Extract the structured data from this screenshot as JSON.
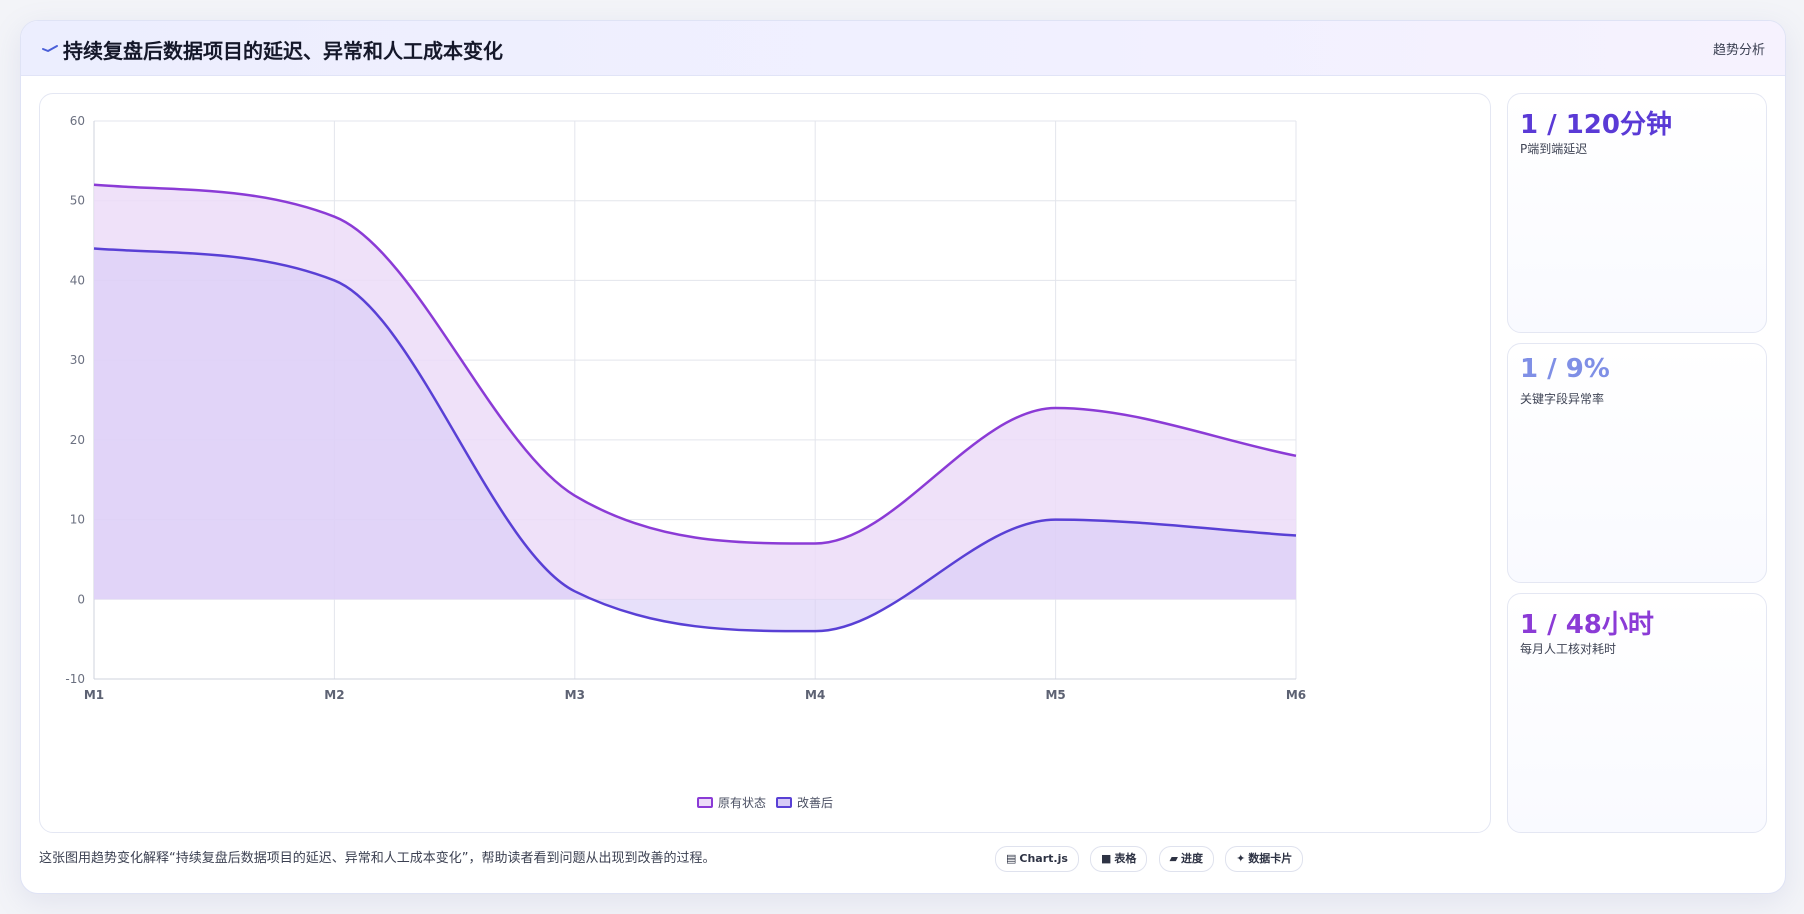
{
  "header": {
    "title": "持续复盘后数据项目的延迟、异常和人工成本变化",
    "action_label": "趋势分析"
  },
  "chart_data": {
    "type": "line",
    "categories": [
      "M1",
      "M2",
      "M3",
      "M4",
      "M5",
      "M6"
    ],
    "series": [
      {
        "name": "原有状态",
        "values": [
          52,
          48,
          13,
          7,
          24,
          18
        ],
        "color": "#8b3bd6",
        "fill": "#ecdcf8"
      },
      {
        "name": "改善后",
        "values": [
          44,
          40,
          1,
          -4,
          10,
          8
        ],
        "color": "#5940d5",
        "fill": "#d7cbf6"
      }
    ],
    "ylim": [
      -10,
      60
    ],
    "yticks": [
      -10,
      0,
      10,
      20,
      30,
      40,
      50,
      60
    ],
    "fill": true,
    "smooth": true,
    "grid": true,
    "legend": "bottom",
    "title": "",
    "xlabel": "",
    "ylabel": ""
  },
  "stats": [
    {
      "value": "1 / 120分钟",
      "label": "P端到端延迟",
      "color": "#5a3ad6"
    },
    {
      "value": "1 / 9%",
      "label": "关键字段异常率",
      "color": "#7f8fe6"
    },
    {
      "value": "1 / 48小时",
      "label": "每月人工核对耗时",
      "color": "#8b3bd6"
    }
  ],
  "footer": {
    "description": "这张图用趋势变化解释“持续复盘后数据项目的延迟、异常和人工成本变化”，帮助读者看到问题从出现到改善的过程。",
    "chips": [
      {
        "icon": "▤",
        "label": "Chart.js"
      },
      {
        "icon": "■",
        "label": "表格"
      },
      {
        "icon": "▰",
        "label": "进度"
      },
      {
        "icon": "✦",
        "label": "数据卡片"
      }
    ]
  }
}
